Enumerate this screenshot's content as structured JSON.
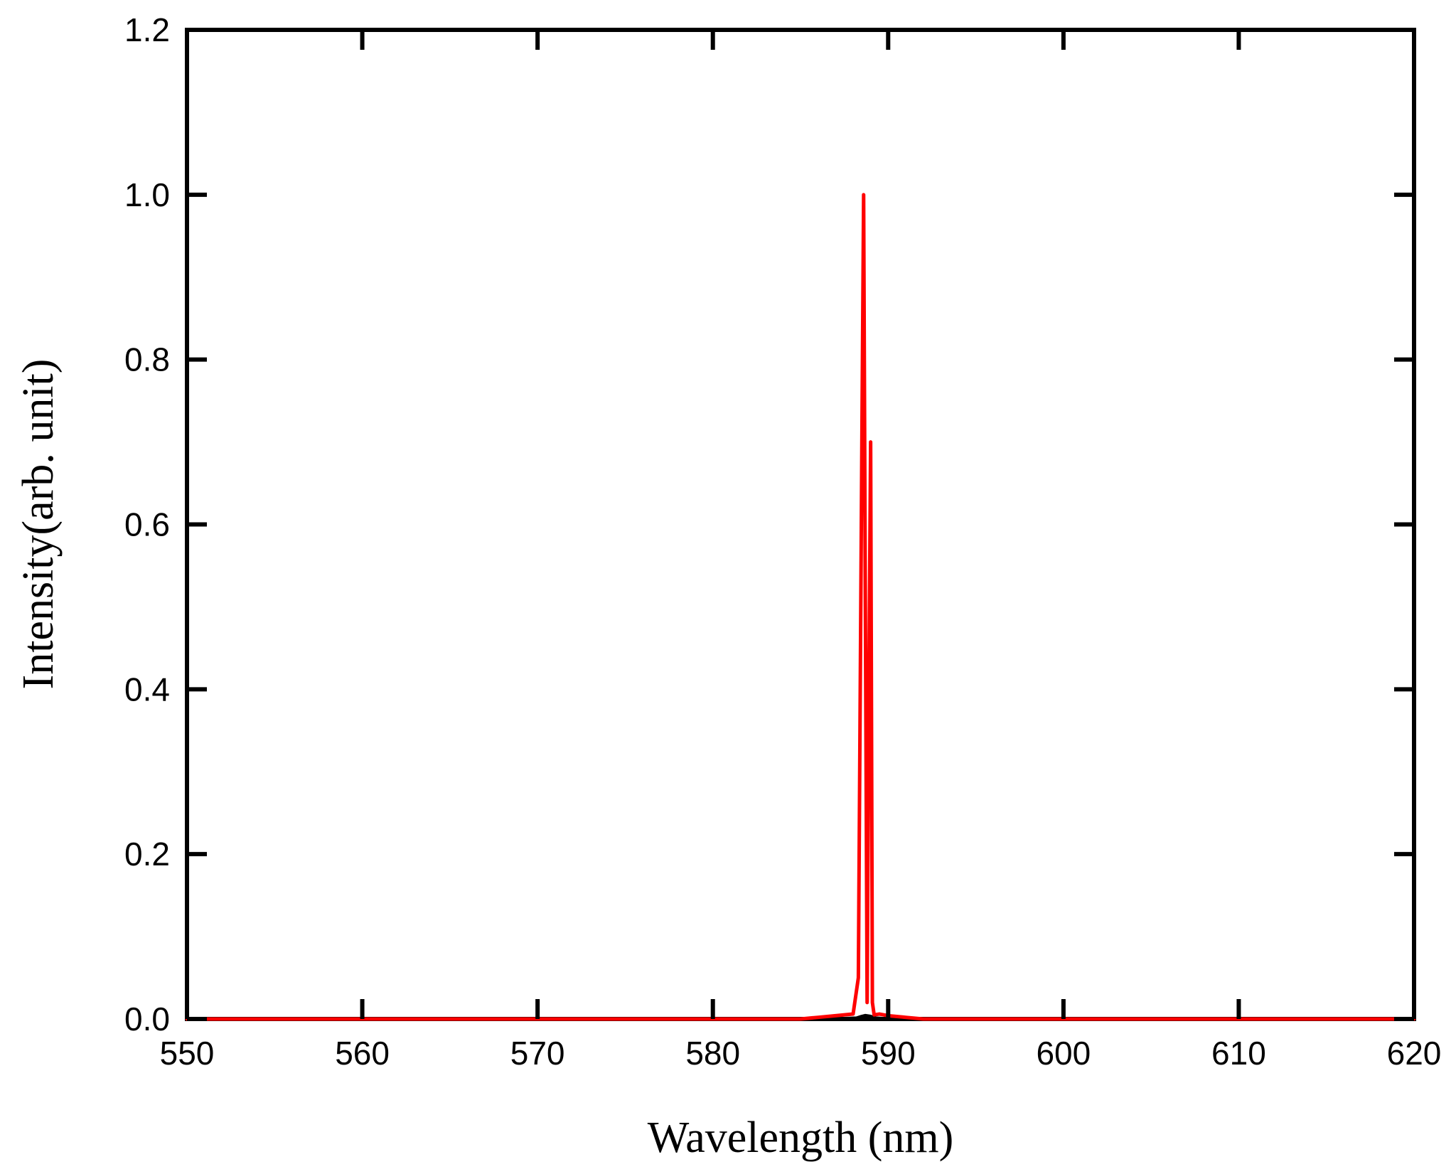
{
  "chart_data": {
    "type": "line",
    "title": "",
    "xlabel": "Wavelength (nm)",
    "ylabel": "Intensity(arb. unit)",
    "xlim": [
      550,
      620
    ],
    "ylim": [
      0,
      1.2
    ],
    "x_ticks": [
      "550",
      "560",
      "570",
      "580",
      "590",
      "600",
      "610",
      "620"
    ],
    "y_ticks": [
      "0.0",
      "0.2",
      "0.4",
      "0.6",
      "0.8",
      "1.0",
      "1.2"
    ],
    "grid": false,
    "legend": "none",
    "series": [
      {
        "color": "#000000",
        "x": [
          550,
          580,
          585,
          587,
          588.2,
          588.5,
          588.7,
          589.0,
          589.3,
          590,
          592,
          595,
          620
        ],
        "y": [
          0.0,
          0.0,
          0.0,
          0.0,
          0.001,
          0.003,
          0.004,
          0.003,
          0.001,
          0.0,
          0.0,
          0.0,
          0.0
        ]
      },
      {
        "color": "#ff0000",
        "x": [
          550,
          575,
          580,
          585,
          586,
          587,
          588,
          588.3,
          588.5,
          588.6,
          588.7,
          588.8,
          588.9,
          589.0,
          589.1,
          589.2,
          589.5,
          590,
          591,
          592,
          595,
          600,
          620
        ],
        "y": [
          0.0,
          0.0,
          0.0,
          0.0,
          0.002,
          0.004,
          0.006,
          0.05,
          0.7,
          1.0,
          0.5,
          0.02,
          0.4,
          0.7,
          0.02,
          0.005,
          0.006,
          0.004,
          0.002,
          0.0,
          0.0,
          0.0,
          0.0
        ]
      }
    ]
  }
}
